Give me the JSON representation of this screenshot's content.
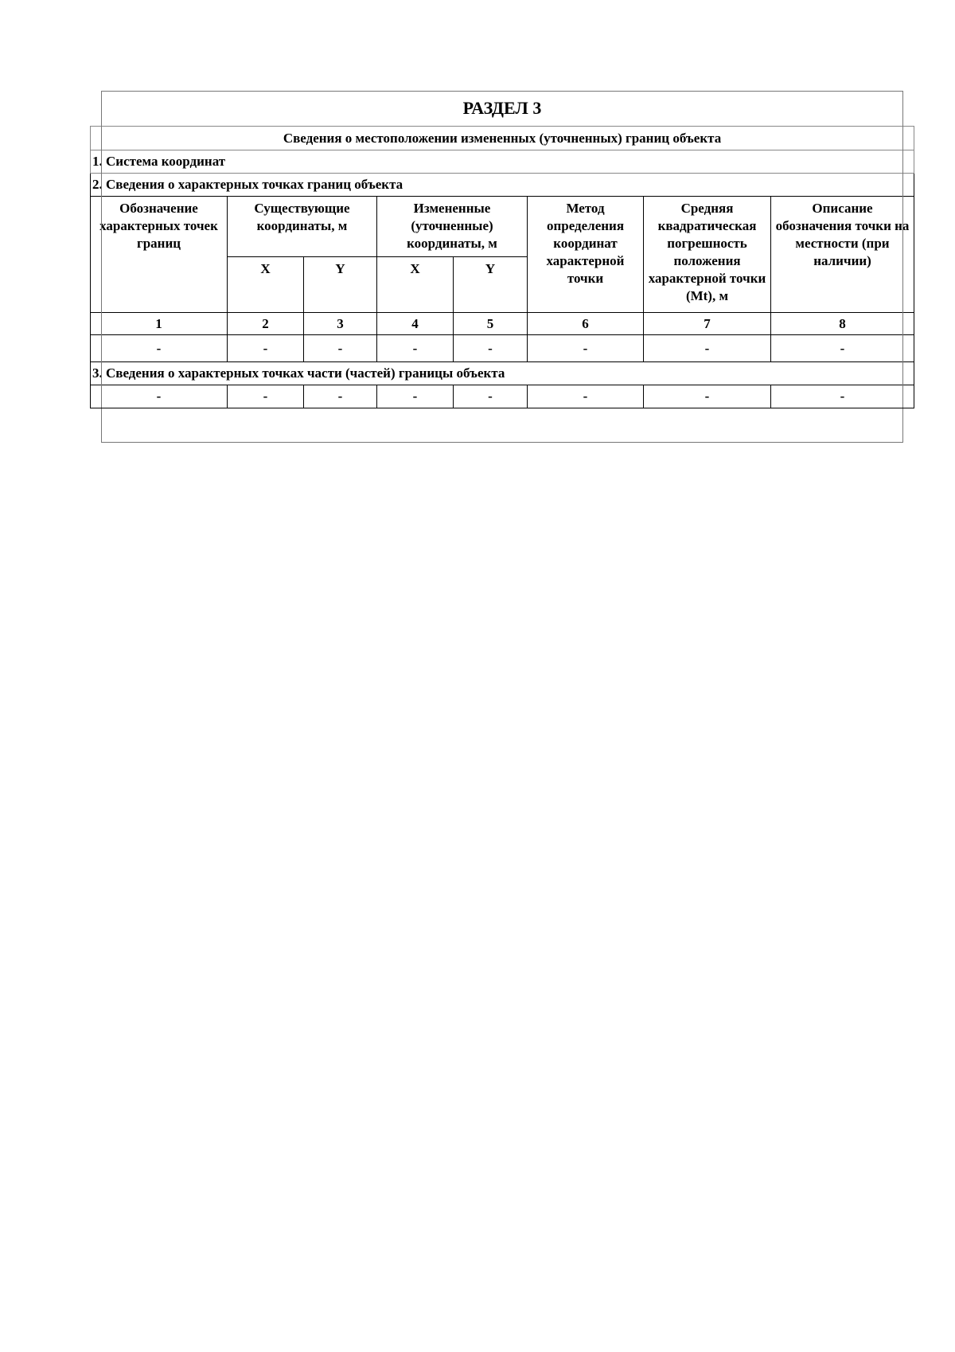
{
  "section_title": "РАЗДЕЛ 3",
  "subtitle": "Сведения о местоположении измененных (уточненных) границ объекта",
  "item1": "1. Система координат",
  "item2": "2. Сведения о характерных точках границ объекта",
  "item3": "3. Сведения о характерных точках части (частей) границы объекта",
  "headers": {
    "col1": "Обозначение характерных точек границ",
    "existing": "Существующие координаты, м",
    "changed": "Измененные (уточненные) координаты, м",
    "x": "X",
    "y": "Y",
    "method": "Метод определения координат характерной точки",
    "error": "Средняя квадратическая погрешность положения характерной точки (Mt), м",
    "description": "Описание обозначения точки на местности (при наличии)"
  },
  "column_numbers": [
    "1",
    "2",
    "3",
    "4",
    "5",
    "6",
    "7",
    "8"
  ],
  "row_boundary": [
    "-",
    "-",
    "-",
    "-",
    "-",
    "-",
    "-",
    "-"
  ],
  "row_parts": [
    "-",
    "-",
    "-",
    "-",
    "-",
    "-",
    "-",
    "-"
  ]
}
